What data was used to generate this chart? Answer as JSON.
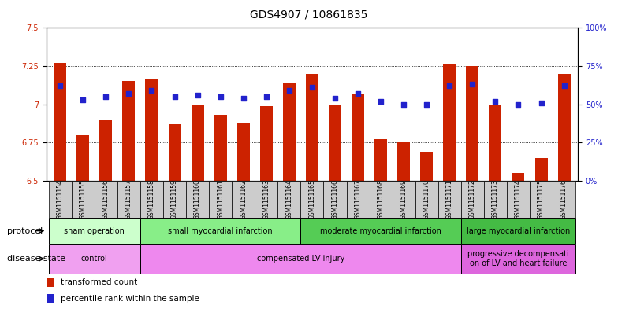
{
  "title": "GDS4907 / 10861835",
  "samples": [
    "GSM1151154",
    "GSM1151155",
    "GSM1151156",
    "GSM1151157",
    "GSM1151158",
    "GSM1151159",
    "GSM1151160",
    "GSM1151161",
    "GSM1151162",
    "GSM1151163",
    "GSM1151164",
    "GSM1151165",
    "GSM1151166",
    "GSM1151167",
    "GSM1151168",
    "GSM1151169",
    "GSM1151170",
    "GSM1151171",
    "GSM1151172",
    "GSM1151173",
    "GSM1151174",
    "GSM1151175",
    "GSM1151176"
  ],
  "bar_values": [
    7.27,
    6.8,
    6.9,
    7.15,
    7.17,
    6.87,
    7.0,
    6.93,
    6.88,
    6.99,
    7.14,
    7.2,
    7.0,
    7.07,
    6.77,
    6.75,
    6.69,
    7.26,
    7.25,
    7.0,
    6.55,
    6.65,
    7.2
  ],
  "blue_values": [
    62,
    53,
    55,
    57,
    59,
    55,
    56,
    55,
    54,
    55,
    59,
    61,
    54,
    57,
    52,
    50,
    50,
    62,
    63,
    52,
    50,
    51,
    62
  ],
  "ylim_left": [
    6.5,
    7.5
  ],
  "ylim_right": [
    0,
    100
  ],
  "yticks_left": [
    6.5,
    6.75,
    7.0,
    7.25,
    7.5
  ],
  "ytick_labels_left": [
    "6.5",
    "6.75",
    "7",
    "7.25",
    "7.5"
  ],
  "yticks_right": [
    0,
    25,
    50,
    75,
    100
  ],
  "ytick_labels_right": [
    "0%",
    "25%",
    "50%",
    "75%",
    "100%"
  ],
  "bar_color": "#cc2200",
  "blue_color": "#2222cc",
  "bar_base": 6.5,
  "protocol_groups": [
    {
      "label": "sham operation",
      "start": 0,
      "end": 4,
      "color": "#ccffcc"
    },
    {
      "label": "small myocardial infarction",
      "start": 4,
      "end": 11,
      "color": "#88ee88"
    },
    {
      "label": "moderate myocardial infarction",
      "start": 11,
      "end": 18,
      "color": "#55cc55"
    },
    {
      "label": "large myocardial infarction",
      "start": 18,
      "end": 23,
      "color": "#44bb44"
    }
  ],
  "disease_groups": [
    {
      "label": "control",
      "start": 0,
      "end": 4,
      "color": "#f0a0f0"
    },
    {
      "label": "compensated LV injury",
      "start": 4,
      "end": 18,
      "color": "#ee88ee"
    },
    {
      "label": "progressive decompensati\non of LV and heart failure",
      "start": 18,
      "end": 23,
      "color": "#dd66dd"
    }
  ],
  "legend_bar_label": "transformed count",
  "legend_dot_label": "percentile rank within the sample",
  "left_axis_color": "#cc2200",
  "right_axis_color": "#2222cc",
  "title_fontsize": 10,
  "tick_fontsize": 7,
  "label_fontsize": 8,
  "sample_fontsize": 5.5,
  "group_fontsize": 7,
  "legend_fontsize": 7.5
}
